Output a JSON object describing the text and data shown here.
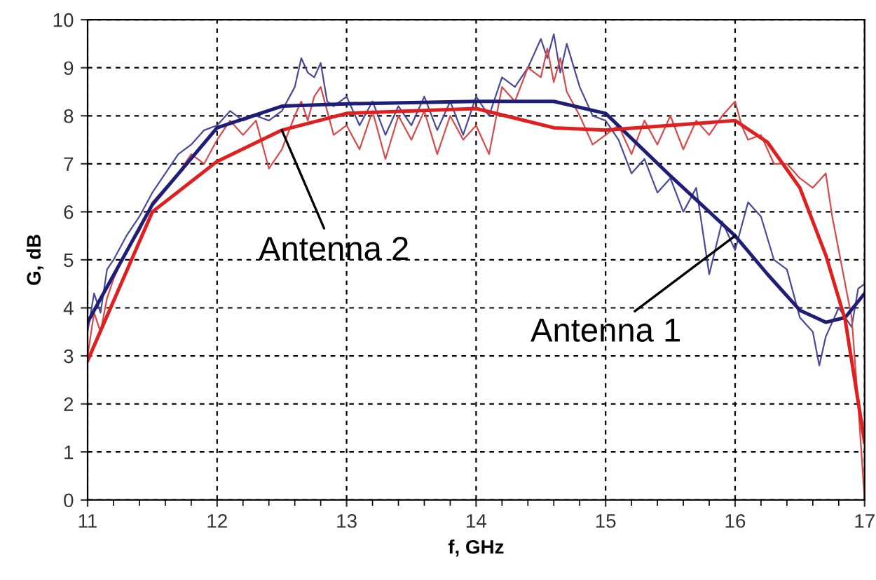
{
  "chart_data": {
    "type": "line",
    "xlabel": "f, GHz",
    "ylabel": "G, dB",
    "xlim": [
      11,
      17
    ],
    "ylim": [
      0,
      10
    ],
    "xticks": [
      11,
      {
        "value": 11.2,
        "label": null
      },
      {
        "value": 11.4,
        "label": null
      },
      {
        "value": 11.6,
        "label": null
      },
      {
        "value": 11.8,
        "label": null
      },
      12,
      {
        "value": 12.2,
        "label": null
      },
      {
        "value": 12.4,
        "label": null
      },
      {
        "value": 12.6,
        "label": null
      },
      {
        "value": 12.8,
        "label": null
      },
      13,
      {
        "value": 13.2,
        "label": null
      },
      {
        "value": 13.4,
        "label": null
      },
      {
        "value": 13.6,
        "label": null
      },
      {
        "value": 13.8,
        "label": null
      },
      14,
      {
        "value": 14.2,
        "label": null
      },
      {
        "value": 14.4,
        "label": null
      },
      {
        "value": 14.6,
        "label": null
      },
      {
        "value": 14.8,
        "label": null
      },
      15,
      {
        "value": 15.2,
        "label": null
      },
      {
        "value": 15.4,
        "label": null
      },
      {
        "value": 15.6,
        "label": null
      },
      {
        "value": 15.8,
        "label": null
      },
      16,
      {
        "value": 16.2,
        "label": null
      },
      {
        "value": 16.4,
        "label": null
      },
      {
        "value": 16.6,
        "label": null
      },
      {
        "value": 16.8,
        "label": null
      },
      17
    ],
    "yticks": [
      0,
      1,
      2,
      3,
      4,
      5,
      6,
      7,
      8,
      9,
      10
    ],
    "grid": true,
    "legend": false,
    "line_style": "solid",
    "marker": "none",
    "series": [
      {
        "color": "#4a4a9a",
        "x": [
          11,
          11.05,
          11.1,
          11.15,
          11.2,
          11.3,
          11.4,
          11.5,
          11.6,
          11.7,
          11.8,
          11.9,
          12,
          12.1,
          12.2,
          12.3,
          12.4,
          12.5,
          12.6,
          12.65,
          12.7,
          12.75,
          12.8,
          12.85,
          12.9,
          13,
          13.1,
          13.2,
          13.3,
          13.4,
          13.5,
          13.6,
          13.7,
          13.8,
          13.9,
          14,
          14.1,
          14.2,
          14.3,
          14.4,
          14.5,
          14.55,
          14.6,
          14.65,
          14.7,
          14.8,
          14.9,
          15,
          15.1,
          15.2,
          15.3,
          15.4,
          15.5,
          15.6,
          15.7,
          15.8,
          15.9,
          16,
          16.1,
          16.2,
          16.3,
          16.4,
          16.5,
          16.6,
          16.65,
          16.7,
          16.8,
          16.9,
          16.95,
          17
        ],
        "values": [
          3.5,
          4.3,
          3.9,
          4.8,
          5.0,
          5.5,
          5.9,
          6.4,
          6.8,
          7.2,
          7.4,
          7.7,
          7.8,
          8.1,
          7.9,
          8.0,
          7.9,
          8.1,
          8.6,
          9.2,
          8.9,
          8.8,
          9.1,
          8.3,
          8.2,
          8.4,
          7.8,
          8.3,
          7.6,
          8.2,
          7.8,
          8.4,
          7.7,
          8.3,
          7.6,
          8.4,
          8.0,
          8.8,
          8.6,
          9.0,
          9.6,
          9.2,
          9.7,
          8.9,
          9.5,
          8.6,
          8.0,
          7.9,
          7.5,
          6.8,
          7.1,
          6.4,
          6.7,
          6.0,
          6.5,
          4.7,
          5.8,
          5.2,
          6.2,
          5.9,
          5.0,
          4.8,
          3.8,
          3.5,
          2.8,
          3.4,
          4.0,
          3.6,
          4.4,
          4.5
        ]
      },
      {
        "color": "#d84a4a",
        "x": [
          11,
          11.05,
          11.1,
          11.15,
          11.2,
          11.3,
          11.4,
          11.5,
          11.6,
          11.7,
          11.8,
          11.9,
          12,
          12.1,
          12.2,
          12.3,
          12.4,
          12.5,
          12.6,
          12.65,
          12.7,
          12.75,
          12.8,
          12.85,
          12.9,
          13,
          13.1,
          13.2,
          13.3,
          13.4,
          13.5,
          13.6,
          13.7,
          13.8,
          13.9,
          14,
          14.1,
          14.2,
          14.3,
          14.4,
          14.5,
          14.55,
          14.6,
          14.65,
          14.7,
          14.8,
          14.9,
          15,
          15.1,
          15.2,
          15.3,
          15.4,
          15.5,
          15.6,
          15.7,
          15.8,
          15.9,
          16,
          16.05,
          16.1,
          16.2,
          16.3,
          16.4,
          16.5,
          16.6,
          16.7,
          16.75,
          16.8,
          16.9,
          16.95,
          17
        ],
        "values": [
          3.0,
          3.9,
          3.5,
          4.2,
          4.6,
          5.2,
          5.6,
          6.2,
          6.5,
          6.8,
          7.2,
          7.0,
          7.5,
          7.9,
          7.6,
          7.9,
          6.9,
          7.3,
          8.0,
          8.3,
          7.9,
          8.4,
          8.6,
          8.1,
          7.6,
          7.8,
          7.3,
          8.1,
          7.1,
          8.0,
          7.5,
          8.1,
          7.2,
          8.0,
          7.5,
          7.8,
          7.2,
          8.6,
          8.3,
          9.0,
          8.8,
          9.4,
          8.7,
          9.2,
          8.5,
          8.0,
          7.4,
          7.6,
          7.8,
          7.2,
          7.9,
          7.4,
          8.0,
          7.3,
          7.9,
          7.6,
          8.0,
          8.3,
          7.8,
          7.5,
          7.6,
          7.0,
          7.0,
          6.7,
          6.5,
          6.8,
          5.9,
          5.2,
          3.8,
          2.0,
          0.0
        ]
      },
      {
        "name": "Antenna 1",
        "color": "#1e1e78",
        "x": [
          11,
          11.5,
          12,
          12.5,
          13,
          14,
          14.6,
          15,
          15.5,
          16,
          16.25,
          16.5,
          16.7,
          16.85,
          17
        ],
        "values": [
          3.7,
          6.15,
          7.75,
          8.2,
          8.25,
          8.3,
          8.3,
          8.05,
          6.75,
          5.5,
          4.7,
          3.95,
          3.7,
          3.8,
          4.3
        ]
      },
      {
        "name": "Antenna 2",
        "color": "#e02020",
        "x": [
          11,
          11.5,
          12,
          12.5,
          13,
          14,
          14.6,
          15,
          15.5,
          16,
          16.25,
          16.5,
          16.7,
          16.85,
          17
        ],
        "values": [
          2.9,
          6.0,
          7.05,
          7.7,
          8.05,
          8.15,
          7.75,
          7.7,
          7.8,
          7.9,
          7.45,
          6.5,
          5.1,
          3.75,
          1.2
        ]
      }
    ]
  }
}
